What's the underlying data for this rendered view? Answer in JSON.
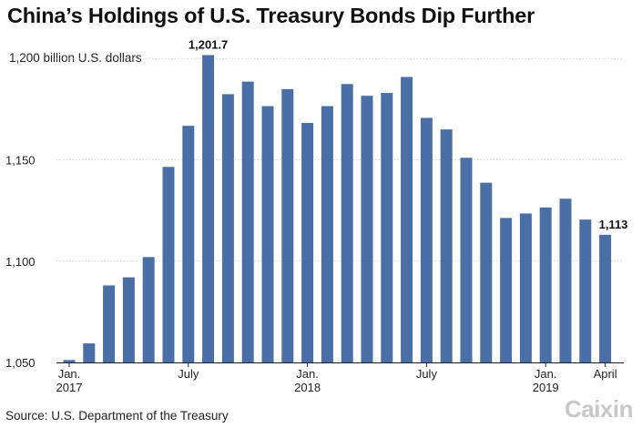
{
  "chart_data": {
    "type": "bar",
    "title": "China’s Holdings of U.S. Treasury Bonds Dip Further",
    "ylabel": "1,200 billion U.S. dollars",
    "source": "Source: U.S. Department of the Treasury",
    "brand": "Caixin",
    "ylim": [
      1050,
      1210
    ],
    "yticks": [
      {
        "value": 1050,
        "label": "1,050"
      },
      {
        "value": 1100,
        "label": "1,100"
      },
      {
        "value": 1150,
        "label": "1,150"
      },
      {
        "value": 1200,
        "label": ""
      }
    ],
    "grid": true,
    "bar_color": "#4a6fa6",
    "categories": [
      "2017-01",
      "2017-02",
      "2017-03",
      "2017-04",
      "2017-05",
      "2017-06",
      "2017-07",
      "2017-08",
      "2017-09",
      "2017-10",
      "2017-11",
      "2017-12",
      "2018-01",
      "2018-02",
      "2018-03",
      "2018-04",
      "2018-05",
      "2018-06",
      "2018-07",
      "2018-08",
      "2018-09",
      "2018-10",
      "2018-11",
      "2018-12",
      "2019-01",
      "2019-02",
      "2019-03",
      "2019-04"
    ],
    "values": [
      1051.2,
      1059.4,
      1088.0,
      1092.0,
      1102.0,
      1146.5,
      1166.8,
      1201.7,
      1182.4,
      1188.6,
      1176.5,
      1184.9,
      1168.2,
      1176.5,
      1187.4,
      1181.6,
      1183.0,
      1190.9,
      1170.7,
      1165.0,
      1151.0,
      1138.7,
      1121.3,
      1123.5,
      1126.5,
      1130.8,
      1120.5,
      1113.0
    ],
    "xticks": [
      {
        "index": 0,
        "line1": "Jan.",
        "line2": "2017"
      },
      {
        "index": 6,
        "line1": "July",
        "line2": ""
      },
      {
        "index": 12,
        "line1": "Jan.",
        "line2": "2018"
      },
      {
        "index": 18,
        "line1": "July",
        "line2": ""
      },
      {
        "index": 24,
        "line1": "Jan.",
        "line2": "2019"
      },
      {
        "index": 27,
        "line1": "April",
        "line2": ""
      }
    ],
    "annotations": [
      {
        "index": 7,
        "text": "1,201.7"
      },
      {
        "index": 27,
        "text": "1,113"
      }
    ]
  }
}
